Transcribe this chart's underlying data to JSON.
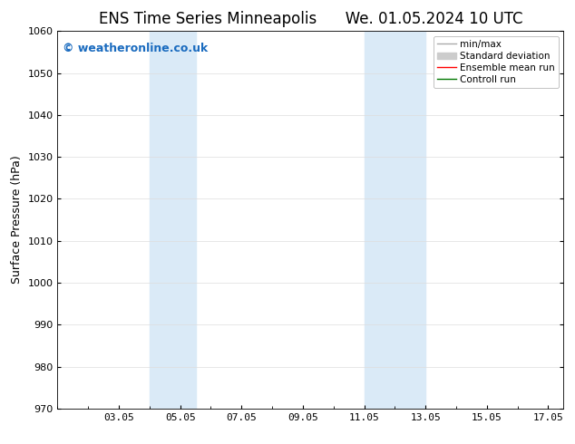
{
  "title_left": "ENS Time Series Minneapolis",
  "title_right": "We. 01.05.2024 10 UTC",
  "ylabel": "Surface Pressure (hPa)",
  "ylim": [
    970,
    1060
  ],
  "yticks": [
    970,
    980,
    990,
    1000,
    1010,
    1020,
    1030,
    1040,
    1050,
    1060
  ],
  "xtick_labels": [
    "03.05",
    "05.05",
    "07.05",
    "09.05",
    "11.05",
    "13.05",
    "15.05",
    "17.05"
  ],
  "xtick_positions": [
    3,
    5,
    7,
    9,
    11,
    13,
    15,
    17
  ],
  "xlim": [
    1.0,
    17.5
  ],
  "watermark": "© weatheronline.co.uk",
  "watermark_color": "#1a6bbf",
  "background_color": "#ffffff",
  "shaded_bands": [
    {
      "x_start": 4.0,
      "x_end": 5.5,
      "color": "#daeaf7"
    },
    {
      "x_start": 11.0,
      "x_end": 13.0,
      "color": "#daeaf7"
    }
  ],
  "legend_entries": [
    {
      "label": "min/max",
      "color": "#aaaaaa",
      "linewidth": 1.0,
      "linestyle": "-",
      "type": "line"
    },
    {
      "label": "Standard deviation",
      "color": "#cccccc",
      "linewidth": 5,
      "linestyle": "-",
      "type": "patch"
    },
    {
      "label": "Ensemble mean run",
      "color": "#ff0000",
      "linewidth": 1.0,
      "linestyle": "-",
      "type": "line"
    },
    {
      "label": "Controll run",
      "color": "#007700",
      "linewidth": 1.0,
      "linestyle": "-",
      "type": "line"
    }
  ],
  "title_fontsize": 12,
  "axis_label_fontsize": 9,
  "tick_fontsize": 8,
  "legend_fontsize": 7.5,
  "watermark_fontsize": 9
}
